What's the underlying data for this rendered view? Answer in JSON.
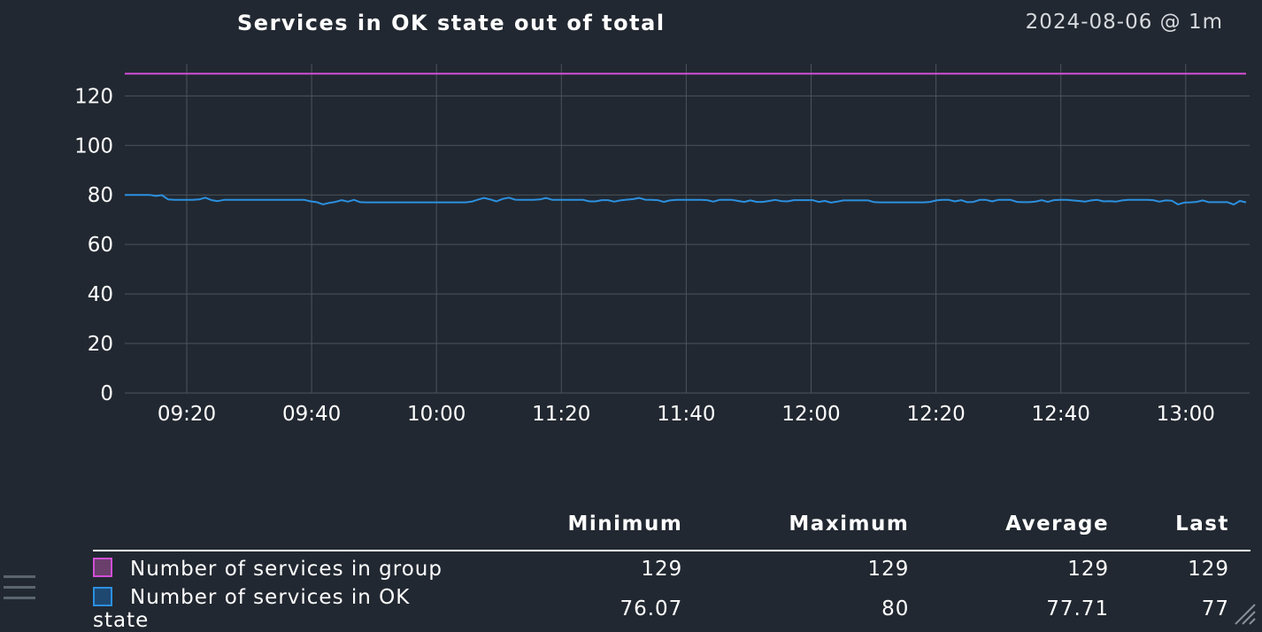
{
  "header": {
    "title": "Services in OK state out of total",
    "timestamp": "2024-08-06 @ 1m"
  },
  "colors": {
    "background": "#222831",
    "grid": "#4c535b",
    "series_total": "#d14fd6",
    "series_ok": "#2b90e0"
  },
  "chart_data": {
    "type": "line",
    "title": "Services in OK state out of total",
    "xlabel": "",
    "ylabel": "",
    "ylim": [
      0,
      133
    ],
    "y_ticks": [
      "0",
      "20",
      "40",
      "60",
      "80",
      "100",
      "120"
    ],
    "x_ticks": [
      "09:20",
      "09:40",
      "10:00",
      "11:20",
      "11:40",
      "12:00",
      "12:20",
      "12:40",
      "13:00"
    ],
    "grid": true,
    "series": [
      {
        "name": "Number of services in group",
        "color": "#d14fd6",
        "values": [
          129,
          129,
          129,
          129,
          129,
          129,
          129,
          129,
          129,
          129,
          129,
          129,
          129,
          129,
          129,
          129,
          129,
          129,
          129,
          129,
          129,
          129,
          129,
          129,
          129,
          129,
          129,
          129,
          129,
          129,
          129,
          129,
          129,
          129,
          129,
          129,
          129,
          129,
          129,
          129,
          129,
          129,
          129,
          129,
          129,
          129,
          129,
          129,
          129,
          129,
          129,
          129,
          129,
          129,
          129,
          129,
          129,
          129,
          129,
          129,
          129,
          129,
          129,
          129,
          129,
          129,
          129,
          129,
          129,
          129,
          129,
          129,
          129,
          129,
          129,
          129,
          129,
          129,
          129,
          129,
          129,
          129,
          129,
          129,
          129,
          129,
          129,
          129,
          129,
          129,
          129,
          129,
          129,
          129,
          129,
          129,
          129,
          129,
          129,
          129,
          129,
          129,
          129,
          129,
          129,
          129,
          129,
          129,
          129,
          129,
          129,
          129,
          129,
          129,
          129,
          129,
          129,
          129,
          129,
          129,
          129,
          129,
          129,
          129,
          129,
          129,
          129,
          129,
          129,
          129,
          129,
          129,
          129,
          129,
          129,
          129,
          129,
          129,
          129,
          129,
          129,
          129,
          129,
          129,
          129,
          129,
          129,
          129,
          129,
          129,
          129,
          129,
          129,
          129,
          129,
          129,
          129,
          129,
          129,
          129,
          129,
          129,
          129,
          129,
          129,
          129,
          129,
          129,
          129,
          129,
          129,
          129,
          129,
          129,
          129,
          129
        ]
      },
      {
        "name": "Number of services in OK state",
        "color": "#2b90e0",
        "values": [
          80,
          80,
          80,
          80,
          80,
          79.6,
          79.9,
          78.2,
          78,
          78,
          78,
          78,
          78.2,
          78.9,
          77.9,
          77.5,
          78,
          78,
          78,
          78,
          78,
          78,
          78,
          78,
          78,
          78,
          78,
          78,
          78,
          78,
          77.4,
          77.1,
          76.2,
          76.8,
          77.2,
          77.9,
          77.3,
          78,
          77.1,
          77,
          77,
          77,
          77,
          77,
          77,
          77,
          77,
          77,
          77,
          77,
          77,
          77,
          77,
          77,
          77,
          77,
          77.3,
          78.1,
          78.8,
          78.2,
          77.4,
          78.4,
          78.9,
          78.1,
          78,
          78,
          78,
          78.2,
          78.8,
          78,
          78,
          78,
          78,
          78,
          78,
          77.4,
          77.4,
          77.9,
          77.9,
          77.3,
          77.8,
          78.1,
          78.3,
          78.8,
          78.1,
          78,
          77.9,
          77.2,
          77.8,
          78,
          78,
          78,
          78,
          78,
          77.9,
          77.3,
          78,
          78,
          78,
          77.6,
          77.2,
          77.8,
          77.2,
          77.2,
          77.6,
          78,
          77.5,
          77.4,
          77.9,
          77.9,
          77.9,
          77.9,
          77.2,
          77.6,
          76.9,
          77.3,
          77.8,
          77.8,
          77.8,
          77.8,
          77.8,
          77.1,
          77,
          77,
          77,
          77,
          77,
          77,
          77,
          77,
          77.2,
          77.8,
          78,
          78,
          77.4,
          77.9,
          77.1,
          77.2,
          78,
          78,
          77.4,
          78,
          78,
          78,
          77.2,
          77.1,
          77.1,
          77.3,
          77.9,
          77.2,
          77.9,
          78,
          78,
          77.8,
          77.6,
          77.3,
          77.8,
          78,
          77.4,
          77.5,
          77.3,
          77.8,
          78,
          78,
          78,
          78,
          77.9,
          77.3,
          77.8,
          77.7,
          76.2,
          76.9,
          77,
          77.2,
          77.8,
          77.1,
          77.1,
          77.1,
          77.1,
          76.1,
          77.6,
          77
        ]
      }
    ]
  },
  "legend": {
    "headers": [
      "Minimum",
      "Maximum",
      "Average",
      "Last"
    ],
    "rows": [
      {
        "name": "Number of services in group",
        "swatch_fill": "#6a3f6c",
        "swatch_border": "#d14fd6",
        "min": "129",
        "max": "129",
        "avg": "129",
        "last": "129"
      },
      {
        "name": "Number of services in OK state",
        "swatch_fill": "#1f4870",
        "swatch_border": "#2b90e0",
        "min": "76.07",
        "max": "80",
        "avg": "77.71",
        "last": "77"
      }
    ]
  }
}
